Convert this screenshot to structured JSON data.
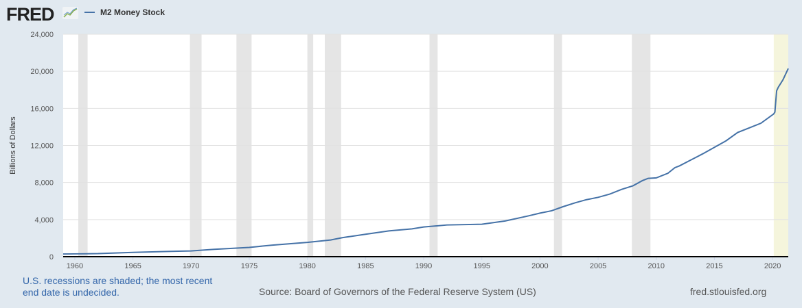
{
  "header": {
    "logo": "FRED",
    "legend_label": "M2 Money Stock"
  },
  "footer": {
    "note": "U.S. recessions are shaded; the most recent end date is undecided.",
    "source": "Source: Board of Governors of the Federal Reserve System (US)",
    "site": "fred.stlouisfed.org"
  },
  "colors": {
    "line": "#4572a7",
    "recession": "#e5e5e5",
    "recession_undecided": "#f5f5dc",
    "background": "#e1e9f0"
  },
  "chart_data": {
    "type": "line",
    "ylabel": "Billions of Dollars",
    "xlim": [
      1959.0,
      2021.35
    ],
    "ylim": [
      0,
      24000
    ],
    "yticks": [
      0,
      4000,
      8000,
      12000,
      16000,
      20000,
      24000
    ],
    "ytick_labels": [
      "0",
      "4,000",
      "8,000",
      "12,000",
      "16,000",
      "20,000",
      "24,000"
    ],
    "xticks": [
      1960,
      1965,
      1970,
      1975,
      1980,
      1985,
      1990,
      1995,
      2000,
      2005,
      2010,
      2015,
      2020
    ],
    "grid": true,
    "legend_position": "top-left",
    "recessions": [
      [
        1960.3,
        1961.1
      ],
      [
        1969.9,
        1970.9
      ],
      [
        1973.9,
        1975.2
      ],
      [
        1980.0,
        1980.5
      ],
      [
        1981.5,
        1982.9
      ],
      [
        1990.5,
        1991.2
      ],
      [
        2001.2,
        2001.9
      ],
      [
        2007.9,
        2009.5
      ],
      [
        2020.1,
        null
      ]
    ],
    "series": [
      {
        "name": "M2 Money Stock",
        "points": [
          [
            1959.0,
            287
          ],
          [
            1960,
            300
          ],
          [
            1962,
            330
          ],
          [
            1965,
            460
          ],
          [
            1968,
            560
          ],
          [
            1970,
            620
          ],
          [
            1972,
            790
          ],
          [
            1975,
            1000
          ],
          [
            1977,
            1250
          ],
          [
            1980,
            1540
          ],
          [
            1982,
            1800
          ],
          [
            1983,
            2050
          ],
          [
            1985,
            2420
          ],
          [
            1987,
            2780
          ],
          [
            1989,
            3000
          ],
          [
            1990,
            3200
          ],
          [
            1992,
            3420
          ],
          [
            1995,
            3500
          ],
          [
            1997,
            3850
          ],
          [
            1999,
            4400
          ],
          [
            2000,
            4700
          ],
          [
            2001,
            4950
          ],
          [
            2002,
            5400
          ],
          [
            2003,
            5800
          ],
          [
            2004,
            6150
          ],
          [
            2005,
            6400
          ],
          [
            2006,
            6750
          ],
          [
            2007,
            7250
          ],
          [
            2008,
            7650
          ],
          [
            2008.8,
            8200
          ],
          [
            2009.3,
            8450
          ],
          [
            2010,
            8500
          ],
          [
            2011,
            9000
          ],
          [
            2011.6,
            9600
          ],
          [
            2012,
            9800
          ],
          [
            2013,
            10450
          ],
          [
            2014,
            11100
          ],
          [
            2015,
            11800
          ],
          [
            2016,
            12500
          ],
          [
            2017,
            13400
          ],
          [
            2018,
            13900
          ],
          [
            2019,
            14400
          ],
          [
            2020.1,
            15400
          ],
          [
            2020.2,
            15600
          ],
          [
            2020.35,
            17900
          ],
          [
            2020.5,
            18300
          ],
          [
            2020.9,
            19100
          ],
          [
            2021.35,
            20300
          ]
        ]
      }
    ]
  }
}
